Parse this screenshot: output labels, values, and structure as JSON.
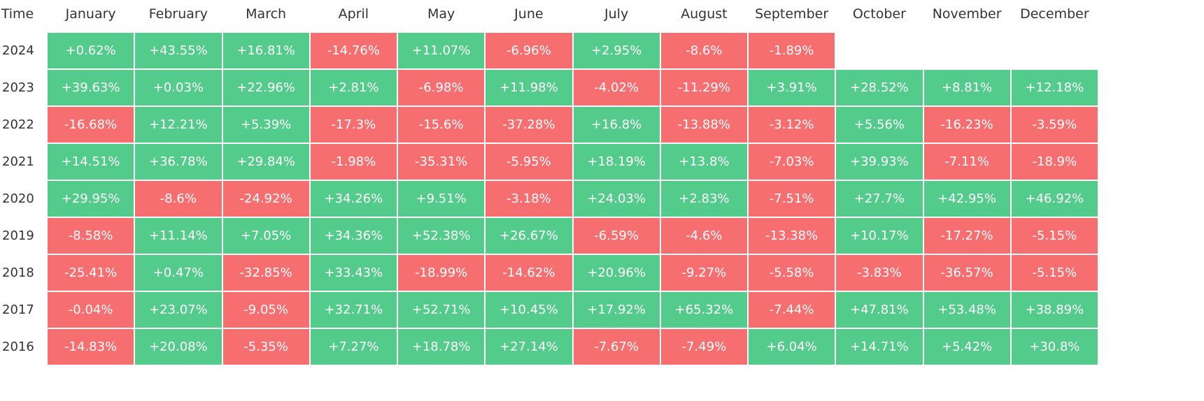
{
  "table": {
    "header": [
      "Time",
      "January",
      "February",
      "March",
      "April",
      "May",
      "June",
      "July",
      "August",
      "September",
      "October",
      "November",
      "December"
    ],
    "colors": {
      "positive": "#53cc8b",
      "negative": "#f76e70"
    },
    "rows": [
      {
        "year": "2024",
        "cells": [
          "+0.62%",
          "+43.55%",
          "+16.81%",
          "-14.76%",
          "+11.07%",
          "-6.96%",
          "+2.95%",
          "-8.6%",
          "-1.89%"
        ]
      },
      {
        "year": "2023",
        "cells": [
          "+39.63%",
          "+0.03%",
          "+22.96%",
          "+2.81%",
          "-6.98%",
          "+11.98%",
          "-4.02%",
          "-11.29%",
          "+3.91%",
          "+28.52%",
          "+8.81%",
          "+12.18%"
        ]
      },
      {
        "year": "2022",
        "cells": [
          "-16.68%",
          "+12.21%",
          "+5.39%",
          "-17.3%",
          "-15.6%",
          "-37.28%",
          "+16.8%",
          "-13.88%",
          "-3.12%",
          "+5.56%",
          "-16.23%",
          "-3.59%"
        ]
      },
      {
        "year": "2021",
        "cells": [
          "+14.51%",
          "+36.78%",
          "+29.84%",
          "-1.98%",
          "-35.31%",
          "-5.95%",
          "+18.19%",
          "+13.8%",
          "-7.03%",
          "+39.93%",
          "-7.11%",
          "-18.9%"
        ]
      },
      {
        "year": "2020",
        "cells": [
          "+29.95%",
          "-8.6%",
          "-24.92%",
          "+34.26%",
          "+9.51%",
          "-3.18%",
          "+24.03%",
          "+2.83%",
          "-7.51%",
          "+27.7%",
          "+42.95%",
          "+46.92%"
        ]
      },
      {
        "year": "2019",
        "cells": [
          "-8.58%",
          "+11.14%",
          "+7.05%",
          "+34.36%",
          "+52.38%",
          "+26.67%",
          "-6.59%",
          "-4.6%",
          "-13.38%",
          "+10.17%",
          "-17.27%",
          "-5.15%"
        ]
      },
      {
        "year": "2018",
        "cells": [
          "-25.41%",
          "+0.47%",
          "-32.85%",
          "+33.43%",
          "-18.99%",
          "-14.62%",
          "+20.96%",
          "-9.27%",
          "-5.58%",
          "-3.83%",
          "-36.57%",
          "-5.15%"
        ]
      },
      {
        "year": "2017",
        "cells": [
          "-0.04%",
          "+23.07%",
          "-9.05%",
          "+32.71%",
          "+52.71%",
          "+10.45%",
          "+17.92%",
          "+65.32%",
          "-7.44%",
          "+47.81%",
          "+53.48%",
          "+38.89%"
        ]
      },
      {
        "year": "2016",
        "cells": [
          "-14.83%",
          "+20.08%",
          "-5.35%",
          "+7.27%",
          "+18.78%",
          "+27.14%",
          "-7.67%",
          "-7.49%",
          "+6.04%",
          "+14.71%",
          "+5.42%",
          "+30.8%"
        ]
      }
    ]
  }
}
